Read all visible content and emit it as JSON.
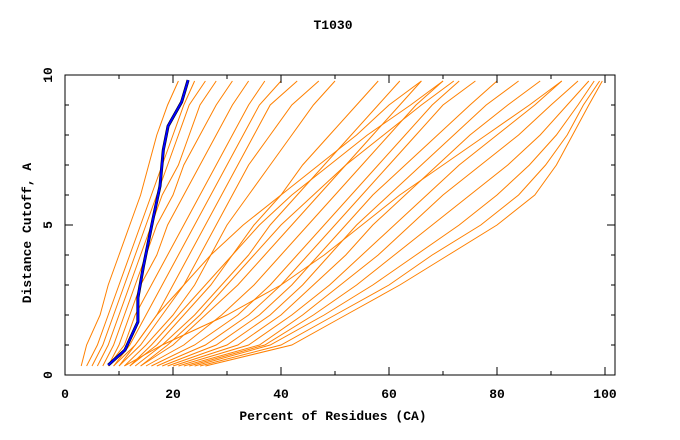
{
  "chart_data": {
    "type": "line",
    "title": "T1030",
    "xlabel": "Percent of Residues (CA)",
    "ylabel": "Distance Cutoff, A",
    "xlim": [
      0,
      102
    ],
    "ylim": [
      0,
      10
    ],
    "x_ticks": [
      "0",
      "20",
      "40",
      "60",
      "80",
      "100"
    ],
    "y_ticks": [
      "0",
      "5",
      "10"
    ],
    "grid": false,
    "legend": "none",
    "colors": {
      "models": "#ff8000",
      "highlight": "#0000ff",
      "highlight_shadow": "#000000"
    },
    "cutoffs": [
      0.3,
      1,
      2,
      3,
      4,
      5,
      6,
      7,
      8,
      9,
      9.8
    ],
    "model_curves": [
      [
        3,
        4,
        6.5,
        8,
        10,
        12,
        14,
        15.5,
        17,
        19,
        21
      ],
      [
        4,
        6,
        8,
        10,
        12,
        14,
        16,
        18,
        20,
        22,
        24
      ],
      [
        5,
        7,
        9,
        11,
        13,
        15,
        17,
        19,
        21,
        23,
        26
      ],
      [
        6,
        8,
        10,
        12,
        14,
        16,
        18,
        21,
        23,
        25,
        28
      ],
      [
        7,
        9,
        11,
        13,
        15,
        17,
        20,
        22,
        25,
        28,
        31
      ],
      [
        8,
        10,
        12,
        14,
        17,
        19,
        22,
        25,
        28,
        31,
        34
      ],
      [
        8,
        11,
        13,
        16,
        19,
        22,
        25,
        28,
        31,
        34,
        37
      ],
      [
        9,
        12,
        15,
        18,
        21,
        24,
        27,
        30,
        33,
        36,
        40
      ],
      [
        10,
        13,
        17,
        20,
        23,
        26,
        29,
        32,
        35,
        38,
        43
      ],
      [
        10,
        14,
        18,
        22,
        25,
        28,
        31,
        34,
        38,
        42,
        47
      ],
      [
        11,
        15,
        20,
        24,
        27,
        30,
        34,
        38,
        42,
        46,
        50
      ],
      [
        12,
        17,
        22,
        27,
        31,
        35,
        40,
        44,
        49,
        54,
        58
      ],
      [
        13,
        18,
        24,
        29,
        34,
        38,
        43,
        48,
        53,
        58,
        62
      ],
      [
        14,
        20,
        26,
        32,
        37,
        42,
        47,
        52,
        57,
        62,
        66
      ],
      [
        15,
        22,
        29,
        35,
        40,
        45,
        50,
        55,
        60,
        65,
        70
      ],
      [
        16,
        24,
        32,
        38,
        43,
        48,
        53,
        58,
        63,
        68,
        73
      ],
      [
        17,
        26,
        34,
        40,
        45,
        50,
        55,
        60,
        65,
        70,
        76
      ],
      [
        18,
        28,
        36,
        42,
        47,
        52,
        57,
        63,
        69,
        75,
        80
      ],
      [
        19,
        30,
        38,
        44,
        49,
        54,
        60,
        66,
        72,
        78,
        84
      ],
      [
        20,
        32,
        40,
        46,
        52,
        57,
        63,
        69,
        75,
        82,
        88
      ],
      [
        21,
        34,
        42,
        49,
        55,
        61,
        67,
        73,
        80,
        87,
        92
      ],
      [
        22,
        36,
        44,
        51,
        58,
        64,
        70,
        77,
        84,
        90,
        95
      ],
      [
        23,
        37,
        46,
        54,
        61,
        68,
        75,
        82,
        88,
        93,
        97
      ],
      [
        24,
        38,
        48,
        57,
        65,
        73,
        80,
        86,
        91,
        95,
        98
      ],
      [
        25,
        40,
        50,
        60,
        68,
        77,
        84,
        89,
        93,
        96,
        99
      ],
      [
        26,
        42,
        52,
        62,
        71,
        80,
        87,
        91,
        94,
        97,
        99.5
      ],
      [
        14,
        19,
        25,
        30,
        35,
        40,
        46,
        52,
        59,
        66,
        72
      ],
      [
        12,
        16,
        21,
        26,
        31,
        36,
        42,
        49,
        56,
        64,
        70
      ],
      [
        9,
        13,
        17,
        22,
        27,
        33,
        40,
        47,
        54,
        60,
        66
      ],
      [
        11,
        18,
        30,
        40,
        48,
        55,
        62,
        70,
        78,
        86,
        92
      ]
    ],
    "highlight_curve": {
      "x": [
        8.0,
        11.1,
        13.5,
        13.5,
        14.5,
        16.3,
        17.6,
        18.2,
        19.1,
        21.6,
        22.8
      ],
      "y": [
        0.33,
        0.83,
        1.77,
        2.57,
        3.6,
        5.2,
        6.3,
        7.5,
        8.3,
        9.1,
        9.83
      ]
    }
  }
}
